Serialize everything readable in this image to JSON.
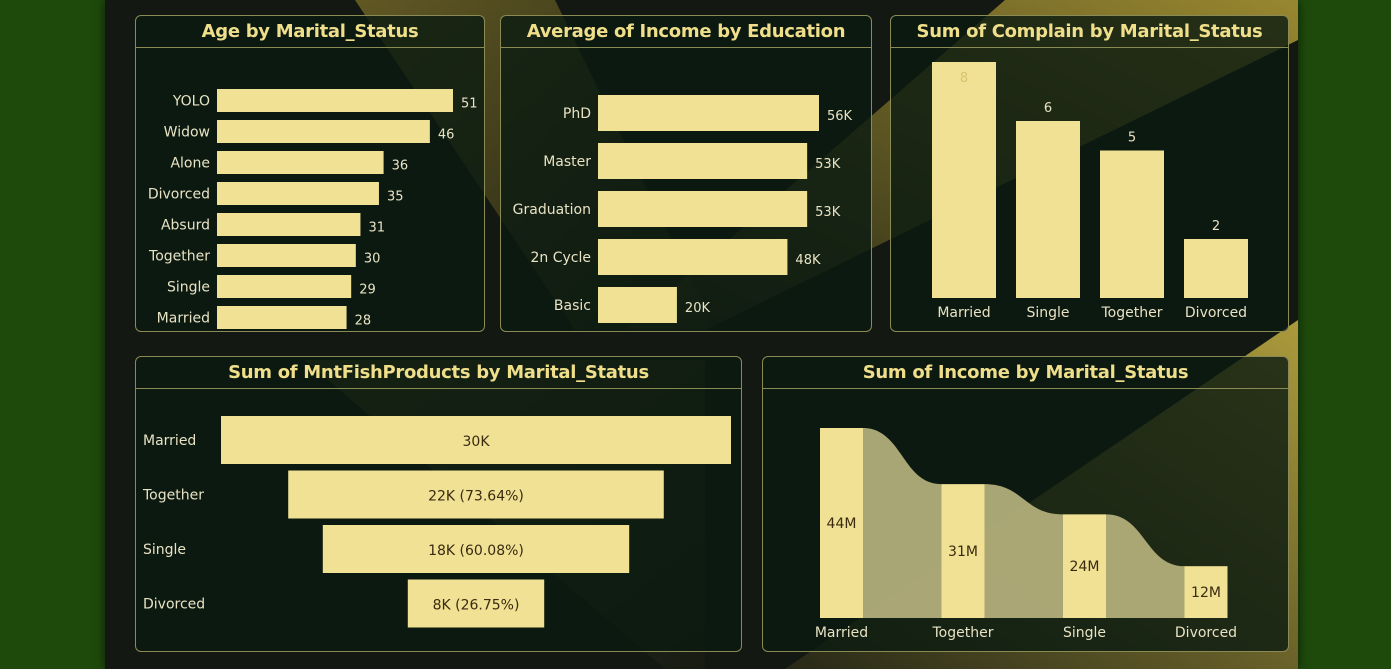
{
  "colors": {
    "bar": "#f0e194",
    "label": "#e8e3c4",
    "inside_label": "#3a2a10",
    "title": "#f0df8a",
    "panel_border": "#8a8a55",
    "ribbon": "#b7b27e"
  },
  "chart_data": [
    {
      "id": "age",
      "type": "bar",
      "orientation": "horizontal",
      "title": "Age by Marital_Status",
      "categories": [
        "YOLO",
        "Widow",
        "Alone",
        "Divorced",
        "Absurd",
        "Together",
        "Single",
        "Married"
      ],
      "values": [
        51,
        46,
        36,
        35,
        31,
        30,
        29,
        28
      ],
      "labels": [
        "51",
        "46",
        "36",
        "35",
        "31",
        "30",
        "29",
        "28"
      ],
      "xlim": [
        0,
        51
      ]
    },
    {
      "id": "income_edu",
      "type": "bar",
      "orientation": "horizontal",
      "title": "Average of Income by Education",
      "categories": [
        "PhD",
        "Master",
        "Graduation",
        "2n Cycle",
        "Basic"
      ],
      "values": [
        56000,
        53000,
        53000,
        48000,
        20000
      ],
      "labels": [
        "56K",
        "53K",
        "53K",
        "48K",
        "20K"
      ],
      "xlim": [
        0,
        56000
      ]
    },
    {
      "id": "complain",
      "type": "bar",
      "orientation": "vertical",
      "title": "Sum of Complain by Marital_Status",
      "categories": [
        "Married",
        "Single",
        "Together",
        "Divorced"
      ],
      "values": [
        8,
        6,
        5,
        2
      ],
      "labels": [
        "8",
        "6",
        "5",
        "2"
      ],
      "ylim": [
        0,
        8
      ]
    },
    {
      "id": "fish",
      "type": "funnel",
      "title": "Sum of MntFishProducts by Marital_Status",
      "categories": [
        "Married",
        "Together",
        "Single",
        "Divorced"
      ],
      "values": [
        30000,
        22092,
        18024,
        8025
      ],
      "labels": [
        "30K",
        "22K (73.64%)",
        "18K (60.08%)",
        "8K (26.75%)"
      ]
    },
    {
      "id": "income_marital",
      "type": "ribbon",
      "title": "Sum of Income by Marital_Status",
      "categories": [
        "Married",
        "Together",
        "Single",
        "Divorced"
      ],
      "values": [
        44000000,
        31000000,
        24000000,
        12000000
      ],
      "labels": [
        "44M",
        "31M",
        "24M",
        "12M"
      ],
      "ylim": [
        0,
        44000000
      ]
    }
  ]
}
